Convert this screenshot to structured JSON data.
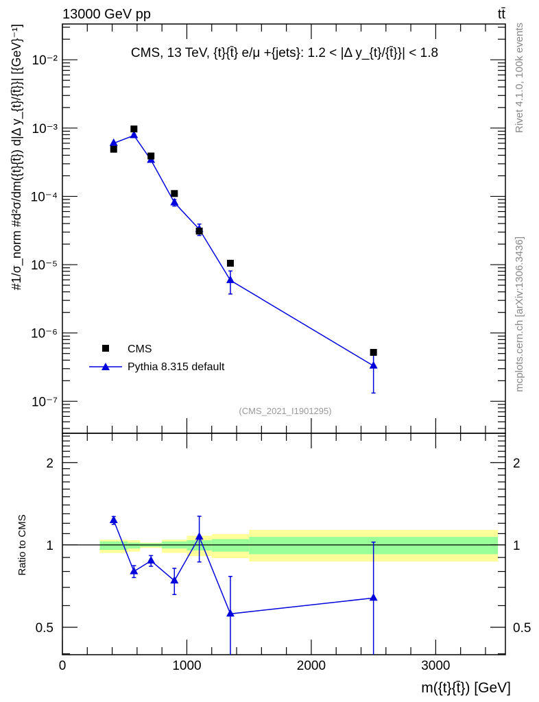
{
  "header": {
    "left": "13000 GeV pp",
    "right": "tt̄",
    "side_top": "Rivet 4.1.0,  100k events",
    "side_bottom": "mcplots.cern.ch [arXiv:1306.3436]"
  },
  "colors": {
    "data": "#000000",
    "mc": "#0000dd",
    "band_inner": "#99ff99",
    "band_outer": "#ffff99"
  },
  "chart_data": [
    {
      "type": "scatter",
      "panel": "main",
      "title": "CMS, 13 TeV, {t}{t̄} e/μ +{jets}: 1.2 < |Δ y_{t}/{t̄}}| < 1.8",
      "watermark": "(CMS_2021_I1901295)",
      "ylabel": "#1/σ_norm #d²σ/dm({t}{t̄}) d|Δ y_{t}/{t̄}}| [{GeV}⁻¹]",
      "xlim": [
        0,
        3560
      ],
      "yscale": "log",
      "ylim": [
        3.4e-08,
        0.0334
      ],
      "ytick_labels": [
        "10⁻⁷",
        "10⁻⁶",
        "10⁻⁵",
        "10⁻⁴",
        "10⁻³",
        "10⁻²"
      ],
      "ytick_values": [
        1e-07,
        1e-06,
        1e-05,
        0.0001,
        0.001,
        0.01
      ],
      "legend_position": "bottom-left",
      "x": [
        412,
        575,
        712,
        900,
        1100,
        1350,
        2500
      ],
      "bins": [
        300,
        525,
        625,
        800,
        1000,
        1200,
        1500,
        3500
      ],
      "series": [
        {
          "name": "CMS",
          "marker": "square",
          "values": [
            0.00049,
            0.00097,
            0.00039,
            0.00011,
            3.1e-05,
            1.05e-05,
            5.2e-07
          ]
        },
        {
          "name": "Pythia 8.315 default",
          "marker": "triangle",
          "line": true,
          "values": [
            0.0006,
            0.00078,
            0.00034,
            8.1e-05,
            3.3e-05,
            5.9e-06,
            3.3e-07
          ],
          "rel_err": [
            0.033,
            0.05,
            0.045,
            0.11,
            0.19,
            0.37,
            0.6
          ]
        }
      ]
    },
    {
      "type": "line",
      "panel": "ratio",
      "ylabel": "Ratio to CMS",
      "xlabel": "m({t}{t̄}) [GeV]",
      "xlim": [
        0,
        3560
      ],
      "yscale": "log",
      "ylim": [
        0.397,
        2.56
      ],
      "ytick_labels": [
        "0.5",
        "1",
        "2"
      ],
      "ytick_values": [
        0.5,
        1,
        2
      ],
      "xtick_labels": [
        "0",
        "1000",
        "2000",
        "3000"
      ],
      "xtick_values": [
        0,
        1000,
        2000,
        3000
      ],
      "x": [
        412,
        575,
        712,
        900,
        1100,
        1350,
        2500
      ],
      "bins": [
        300,
        525,
        625,
        800,
        1000,
        1200,
        1500,
        3500
      ],
      "band_inner": [
        [
          0.96,
          1.03
        ],
        [
          0.97,
          1.02
        ],
        [
          0.985,
          1.015
        ],
        [
          0.97,
          1.03
        ],
        [
          0.955,
          1.04
        ],
        [
          0.945,
          1.05
        ],
        [
          0.925,
          1.07
        ]
      ],
      "band_outer": [
        [
          0.935,
          1.045
        ],
        [
          0.945,
          1.04
        ],
        [
          0.975,
          1.02
        ],
        [
          0.935,
          1.045
        ],
        [
          0.91,
          1.08
        ],
        [
          0.895,
          1.095
        ],
        [
          0.87,
          1.135
        ]
      ],
      "series": [
        {
          "name": "Pythia 8.315 default",
          "values": [
            1.23,
            0.8,
            0.875,
            0.74,
            1.07,
            0.56,
            0.64
          ],
          "rel_err": [
            0.033,
            0.05,
            0.045,
            0.11,
            0.19,
            0.37,
            0.6
          ]
        }
      ]
    }
  ]
}
